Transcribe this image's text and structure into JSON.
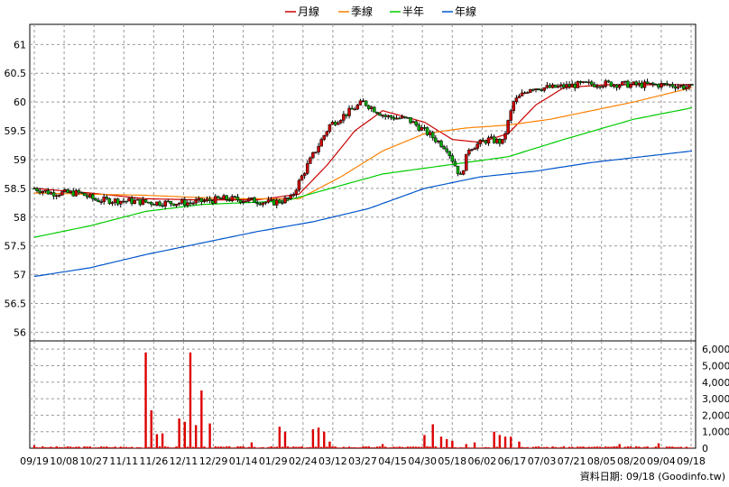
{
  "chart_data": {
    "type": "candlestick+line+bar",
    "legend": [
      {
        "label": "月線",
        "color": "#cc0000"
      },
      {
        "label": "季線",
        "color": "#ff8000"
      },
      {
        "label": "半年",
        "color": "#00cc00"
      },
      {
        "label": "年線",
        "color": "#0055cc"
      }
    ],
    "price_axis": {
      "ticks": [
        "61",
        "60.5",
        "60",
        "59.5",
        "59",
        "58.5",
        "58",
        "57.5",
        "57",
        "56.5",
        "56"
      ],
      "tick_values": [
        61,
        60.5,
        60,
        59.5,
        59,
        58.5,
        58,
        57.5,
        57,
        56.5,
        56
      ],
      "range": [
        55.85,
        61.35
      ]
    },
    "volume_axis": {
      "ticks": [
        "6,000",
        "5,000",
        "4,000",
        "3,000",
        "2,000",
        "1,000",
        "0"
      ],
      "tick_values": [
        6000,
        5000,
        4000,
        3000,
        2000,
        1000,
        0
      ],
      "range": [
        0,
        6500
      ]
    },
    "x_labels": [
      "09/19",
      "10/08",
      "10/27",
      "11/11",
      "11/26",
      "12/11",
      "12/29",
      "01/14",
      "01/29",
      "02/24",
      "03/12",
      "03/27",
      "04/15",
      "04/30",
      "05/18",
      "06/02",
      "06/17",
      "07/03",
      "07/21",
      "08/05",
      "08/20",
      "09/04",
      "09/18"
    ],
    "price_keyframes": [
      [
        0,
        58.5
      ],
      [
        6,
        58.42
      ],
      [
        16,
        58.42
      ],
      [
        22,
        58.3
      ],
      [
        34,
        58.28
      ],
      [
        44,
        58.25
      ],
      [
        56,
        58.25
      ],
      [
        68,
        58.32
      ],
      [
        76,
        58.3
      ],
      [
        85,
        58.25
      ],
      [
        92,
        58.32
      ],
      [
        98,
        58.9
      ],
      [
        106,
        59.6
      ],
      [
        118,
        60.0
      ],
      [
        126,
        59.75
      ],
      [
        134,
        59.7
      ],
      [
        140,
        59.5
      ],
      [
        148,
        59.2
      ],
      [
        153,
        58.7
      ],
      [
        156,
        59.2
      ],
      [
        163,
        59.35
      ],
      [
        168,
        59.3
      ],
      [
        172,
        60.0
      ],
      [
        178,
        60.25
      ],
      [
        186,
        60.25
      ],
      [
        195,
        60.3
      ],
      [
        205,
        60.32
      ],
      [
        215,
        60.3
      ],
      [
        228,
        60.3
      ],
      [
        236,
        60.25
      ]
    ],
    "series_ma": [
      {
        "name": "月線",
        "points": [
          [
            0,
            58.5
          ],
          [
            20,
            58.42
          ],
          [
            40,
            58.32
          ],
          [
            60,
            58.3
          ],
          [
            80,
            58.3
          ],
          [
            95,
            58.4
          ],
          [
            105,
            58.9
          ],
          [
            115,
            59.5
          ],
          [
            125,
            59.85
          ],
          [
            140,
            59.65
          ],
          [
            150,
            59.35
          ],
          [
            160,
            59.3
          ],
          [
            170,
            59.45
          ],
          [
            180,
            59.95
          ],
          [
            190,
            60.25
          ],
          [
            205,
            60.3
          ],
          [
            220,
            60.3
          ],
          [
            236,
            60.3
          ]
        ]
      },
      {
        "name": "季線",
        "points": [
          [
            0,
            58.42
          ],
          [
            40,
            58.38
          ],
          [
            70,
            58.32
          ],
          [
            95,
            58.32
          ],
          [
            110,
            58.7
          ],
          [
            125,
            59.15
          ],
          [
            140,
            59.45
          ],
          [
            155,
            59.55
          ],
          [
            170,
            59.6
          ],
          [
            185,
            59.7
          ],
          [
            200,
            59.85
          ],
          [
            215,
            60.0
          ],
          [
            236,
            60.25
          ]
        ]
      },
      {
        "name": "半年",
        "points": [
          [
            0,
            57.65
          ],
          [
            20,
            57.85
          ],
          [
            40,
            58.1
          ],
          [
            60,
            58.22
          ],
          [
            90,
            58.28
          ],
          [
            110,
            58.55
          ],
          [
            125,
            58.75
          ],
          [
            140,
            58.85
          ],
          [
            155,
            58.95
          ],
          [
            170,
            59.05
          ],
          [
            190,
            59.35
          ],
          [
            215,
            59.7
          ],
          [
            236,
            59.9
          ]
        ]
      },
      {
        "name": "年線",
        "points": [
          [
            0,
            56.97
          ],
          [
            20,
            57.12
          ],
          [
            40,
            57.35
          ],
          [
            60,
            57.55
          ],
          [
            80,
            57.75
          ],
          [
            100,
            57.92
          ],
          [
            120,
            58.15
          ],
          [
            140,
            58.5
          ],
          [
            160,
            58.7
          ],
          [
            180,
            58.8
          ],
          [
            200,
            58.95
          ],
          [
            236,
            59.15
          ]
        ]
      }
    ],
    "volume_spikes": [
      [
        0,
        180
      ],
      [
        5,
        60
      ],
      [
        40,
        5800
      ],
      [
        42,
        2300
      ],
      [
        44,
        850
      ],
      [
        46,
        900
      ],
      [
        52,
        1800
      ],
      [
        54,
        1600
      ],
      [
        56,
        5800
      ],
      [
        58,
        1400
      ],
      [
        60,
        3500
      ],
      [
        63,
        1500
      ],
      [
        78,
        350
      ],
      [
        88,
        1300
      ],
      [
        90,
        1000
      ],
      [
        100,
        1150
      ],
      [
        102,
        1250
      ],
      [
        104,
        1000
      ],
      [
        106,
        400
      ],
      [
        125,
        250
      ],
      [
        140,
        800
      ],
      [
        143,
        1450
      ],
      [
        146,
        700
      ],
      [
        148,
        550
      ],
      [
        150,
        450
      ],
      [
        155,
        250
      ],
      [
        158,
        350
      ],
      [
        165,
        1000
      ],
      [
        167,
        800
      ],
      [
        169,
        700
      ],
      [
        171,
        700
      ],
      [
        174,
        400
      ],
      [
        210,
        250
      ],
      [
        224,
        300
      ]
    ]
  },
  "footer": {
    "source_text": "資料日期: 09/18 (Goodinfo.tw)"
  }
}
